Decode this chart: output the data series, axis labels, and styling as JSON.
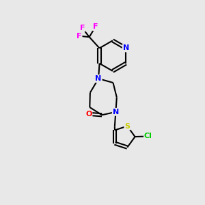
{
  "background_color": "#e8e8e8",
  "bond_color": "#000000",
  "atom_colors": {
    "N": "#0000ff",
    "O": "#ff0000",
    "S": "#cccc00",
    "Cl": "#00cc00",
    "F": "#ff00ff",
    "C": "#000000"
  },
  "figsize": [
    3.0,
    3.0
  ],
  "dpi": 100
}
